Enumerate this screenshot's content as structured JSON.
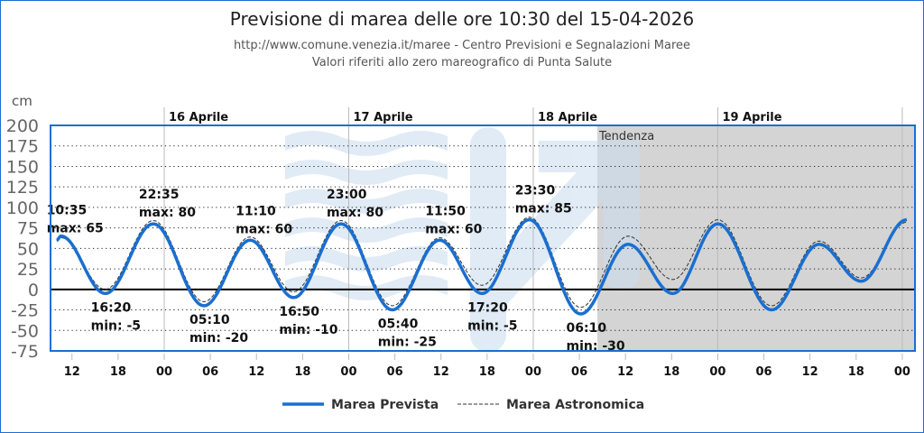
{
  "title": "Previsione di marea delle ore 10:30 del 15-04-2026",
  "subtitle1": "http://www.comune.venezia.it/maree - Centro Previsioni e Segnalazioni Maree",
  "subtitle2": "Valori riferiti allo zero mareografico di Punta Salute",
  "chart_data": {
    "type": "line",
    "ylabel": "cm",
    "ylim": [
      -75,
      200
    ],
    "yticks": [
      200,
      175,
      150,
      125,
      100,
      75,
      50,
      25,
      0,
      -25,
      -50,
      -75
    ],
    "xlim": [
      "15-04 09:00",
      "20-04 02:00"
    ],
    "xtick_labels": [
      "12",
      "18",
      "00",
      "06",
      "12",
      "18",
      "00",
      "06",
      "12",
      "18",
      "00",
      "06",
      "12",
      "18",
      "00",
      "06",
      "12",
      "18",
      "00"
    ],
    "day_labels": [
      {
        "label": "16 Aprile",
        "at": "16-04 00:00"
      },
      {
        "label": "17 Aprile",
        "at": "17-04 00:00"
      },
      {
        "label": "18 Aprile",
        "at": "18-04 00:00"
      },
      {
        "label": "19 Aprile",
        "at": "19-04 00:00"
      }
    ],
    "trend_label": "Tendenza",
    "trend_start": "18-04 08:20",
    "grid": true,
    "legend_position": "bottom",
    "series": [
      {
        "name": "Marea Prevista",
        "color": "#1a6fd0",
        "style": "solid",
        "points": [
          [
            "15-04 10:00",
            60
          ],
          [
            "15-04 10:35",
            65
          ],
          [
            "15-04 16:20",
            -5
          ],
          [
            "15-04 22:35",
            80
          ],
          [
            "16-04 05:10",
            -20
          ],
          [
            "16-04 11:10",
            60
          ],
          [
            "16-04 16:50",
            -10
          ],
          [
            "16-04 23:00",
            80
          ],
          [
            "17-04 05:40",
            -25
          ],
          [
            "17-04 11:50",
            60
          ],
          [
            "17-04 17:20",
            -5
          ],
          [
            "17-04 23:30",
            85
          ],
          [
            "18-04 06:10",
            -30
          ],
          [
            "18-04 12:20",
            55
          ],
          [
            "18-04 18:10",
            -5
          ],
          [
            "19-04 00:00",
            80
          ],
          [
            "19-04 07:00",
            -25
          ],
          [
            "19-04 13:10",
            55
          ],
          [
            "19-04 18:40",
            10
          ],
          [
            "20-04 00:35",
            85
          ]
        ]
      },
      {
        "name": "Marea Astronomica",
        "color": "#333333",
        "style": "dashed",
        "points": [
          [
            "15-04 10:00",
            60
          ],
          [
            "15-04 10:35",
            63
          ],
          [
            "15-04 16:20",
            0
          ],
          [
            "15-04 22:35",
            84
          ],
          [
            "16-04 05:10",
            -15
          ],
          [
            "16-04 11:10",
            64
          ],
          [
            "16-04 16:50",
            -3
          ],
          [
            "16-04 23:00",
            84
          ],
          [
            "17-04 05:40",
            -20
          ],
          [
            "17-04 11:50",
            63
          ],
          [
            "17-04 17:20",
            5
          ],
          [
            "17-04 23:30",
            88
          ],
          [
            "18-04 06:10",
            -22
          ],
          [
            "18-04 12:20",
            65
          ],
          [
            "18-04 18:10",
            12
          ],
          [
            "19-04 00:00",
            85
          ],
          [
            "19-04 07:00",
            -20
          ],
          [
            "19-04 13:10",
            59
          ],
          [
            "19-04 18:40",
            14
          ],
          [
            "20-04 00:35",
            82
          ]
        ]
      }
    ],
    "annotations": [
      {
        "time": "10:35",
        "text": "max: 65",
        "at": "15-04 10:35",
        "value": 65,
        "pos": "above"
      },
      {
        "time": "16:20",
        "text": "min: -5",
        "at": "15-04 16:20",
        "value": -5,
        "pos": "below"
      },
      {
        "time": "22:35",
        "text": "max: 80",
        "at": "15-04 22:35",
        "value": 80,
        "pos": "above"
      },
      {
        "time": "05:10",
        "text": "min: -20",
        "at": "16-04 05:10",
        "value": -20,
        "pos": "below"
      },
      {
        "time": "11:10",
        "text": "max: 60",
        "at": "16-04 11:10",
        "value": 60,
        "pos": "above"
      },
      {
        "time": "16:50",
        "text": "min: -10",
        "at": "16-04 16:50",
        "value": -10,
        "pos": "below"
      },
      {
        "time": "23:00",
        "text": "max: 80",
        "at": "16-04 23:00",
        "value": 80,
        "pos": "above"
      },
      {
        "time": "05:40",
        "text": "min: -25",
        "at": "17-04 05:40",
        "value": -25,
        "pos": "below"
      },
      {
        "time": "11:50",
        "text": "max: 60",
        "at": "17-04 11:50",
        "value": 60,
        "pos": "above"
      },
      {
        "time": "17:20",
        "text": "min: -5",
        "at": "17-04 17:20",
        "value": -5,
        "pos": "below"
      },
      {
        "time": "23:30",
        "text": "max: 85",
        "at": "17-04 23:30",
        "value": 85,
        "pos": "above"
      },
      {
        "time": "06:10",
        "text": "min: -30",
        "at": "18-04 06:10",
        "value": -30,
        "pos": "below"
      }
    ]
  }
}
